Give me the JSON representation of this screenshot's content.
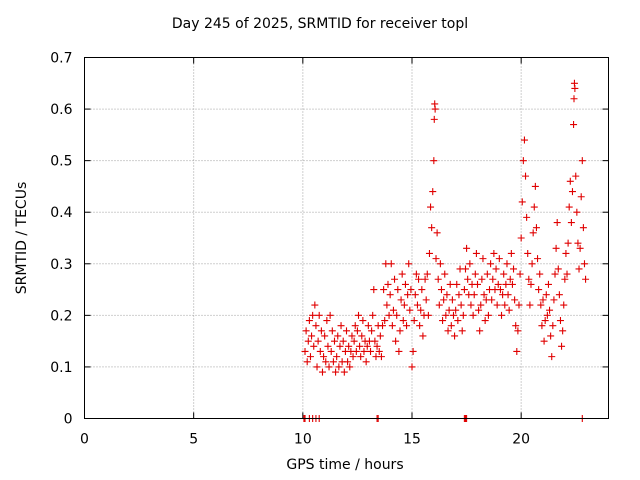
{
  "chart_data": {
    "type": "scatter",
    "title": "Day 245 of 2025, SRMTID for receiver topl",
    "xlabel": "GPS time / hours",
    "ylabel": "SRMTID / TECUs",
    "xlim": [
      0,
      24
    ],
    "ylim": [
      0,
      0.7
    ],
    "xticks": [
      0,
      5,
      10,
      15,
      20
    ],
    "yticks": [
      0,
      0.1,
      0.2,
      0.3,
      0.4,
      0.5,
      0.6,
      0.7
    ],
    "ytick_labels": [
      "0",
      "0.1",
      "0.2",
      "0.3",
      "0.4",
      "0.5",
      "0.6",
      "0.7"
    ],
    "grid": true,
    "marker": "+",
    "color": "#e00000",
    "series": [
      {
        "name": "SRMTID",
        "points": [
          [
            10.05,
            0.0
          ],
          [
            10.1,
            0.0
          ],
          [
            10.3,
            0.0
          ],
          [
            10.45,
            0.0
          ],
          [
            10.6,
            0.0
          ],
          [
            10.75,
            0.0
          ],
          [
            13.4,
            0.0
          ],
          [
            13.45,
            0.0
          ],
          [
            17.4,
            0.0
          ],
          [
            17.45,
            0.0
          ],
          [
            17.5,
            0.0
          ],
          [
            22.8,
            0.0
          ],
          [
            10.1,
            0.13
          ],
          [
            10.15,
            0.17
          ],
          [
            10.2,
            0.11
          ],
          [
            10.25,
            0.15
          ],
          [
            10.3,
            0.19
          ],
          [
            10.35,
            0.12
          ],
          [
            10.4,
            0.16
          ],
          [
            10.45,
            0.2
          ],
          [
            10.5,
            0.14
          ],
          [
            10.55,
            0.22
          ],
          [
            10.6,
            0.18
          ],
          [
            10.65,
            0.1
          ],
          [
            10.7,
            0.15
          ],
          [
            10.75,
            0.2
          ],
          [
            10.8,
            0.13
          ],
          [
            10.85,
            0.17
          ],
          [
            10.9,
            0.09
          ],
          [
            10.95,
            0.12
          ],
          [
            11.0,
            0.16
          ],
          [
            11.05,
            0.11
          ],
          [
            11.1,
            0.19
          ],
          [
            11.15,
            0.14
          ],
          [
            11.2,
            0.1
          ],
          [
            11.25,
            0.2
          ],
          [
            11.3,
            0.13
          ],
          [
            11.35,
            0.17
          ],
          [
            11.4,
            0.11
          ],
          [
            11.45,
            0.15
          ],
          [
            11.5,
            0.09
          ],
          [
            11.55,
            0.12
          ],
          [
            11.6,
            0.16
          ],
          [
            11.65,
            0.1
          ],
          [
            11.7,
            0.14
          ],
          [
            11.75,
            0.18
          ],
          [
            11.8,
            0.11
          ],
          [
            11.85,
            0.15
          ],
          [
            11.9,
            0.09
          ],
          [
            11.95,
            0.13
          ],
          [
            12.0,
            0.17
          ],
          [
            12.05,
            0.11
          ],
          [
            12.1,
            0.14
          ],
          [
            12.15,
            0.1
          ],
          [
            12.2,
            0.13
          ],
          [
            12.25,
            0.16
          ],
          [
            12.3,
            0.12
          ],
          [
            12.35,
            0.15
          ],
          [
            12.4,
            0.18
          ],
          [
            12.45,
            0.13
          ],
          [
            12.5,
            0.17
          ],
          [
            12.55,
            0.2
          ],
          [
            12.6,
            0.14
          ],
          [
            12.65,
            0.12
          ],
          [
            12.7,
            0.16
          ],
          [
            12.75,
            0.19
          ],
          [
            12.8,
            0.13
          ],
          [
            12.85,
            0.15
          ],
          [
            12.9,
            0.11
          ],
          [
            12.95,
            0.14
          ],
          [
            13.0,
            0.18
          ],
          [
            13.05,
            0.15
          ],
          [
            13.1,
            0.13
          ],
          [
            13.15,
            0.17
          ],
          [
            13.2,
            0.2
          ],
          [
            13.25,
            0.25
          ],
          [
            13.3,
            0.15
          ],
          [
            13.35,
            0.12
          ],
          [
            13.4,
            0.14
          ],
          [
            13.45,
            0.18
          ],
          [
            13.5,
            0.13
          ],
          [
            13.55,
            0.16
          ],
          [
            13.6,
            0.12
          ],
          [
            13.65,
            0.18
          ],
          [
            13.7,
            0.25
          ],
          [
            13.75,
            0.19
          ],
          [
            13.8,
            0.3
          ],
          [
            13.85,
            0.22
          ],
          [
            13.9,
            0.26
          ],
          [
            13.95,
            0.2
          ],
          [
            14.0,
            0.24
          ],
          [
            14.05,
            0.3
          ],
          [
            14.1,
            0.18
          ],
          [
            14.15,
            0.21
          ],
          [
            14.2,
            0.27
          ],
          [
            14.25,
            0.15
          ],
          [
            14.3,
            0.2
          ],
          [
            14.35,
            0.25
          ],
          [
            14.4,
            0.13
          ],
          [
            14.45,
            0.17
          ],
          [
            14.5,
            0.23
          ],
          [
            14.55,
            0.28
          ],
          [
            14.6,
            0.19
          ],
          [
            14.65,
            0.22
          ],
          [
            14.7,
            0.26
          ],
          [
            14.75,
            0.18
          ],
          [
            14.8,
            0.24
          ],
          [
            14.85,
            0.3
          ],
          [
            14.9,
            0.21
          ],
          [
            14.95,
            0.25
          ],
          [
            15.0,
            0.1
          ],
          [
            15.05,
            0.13
          ],
          [
            15.1,
            0.19
          ],
          [
            15.15,
            0.24
          ],
          [
            15.2,
            0.28
          ],
          [
            15.25,
            0.22
          ],
          [
            15.3,
            0.27
          ],
          [
            15.35,
            0.18
          ],
          [
            15.4,
            0.21
          ],
          [
            15.45,
            0.25
          ],
          [
            15.5,
            0.16
          ],
          [
            15.55,
            0.2
          ],
          [
            15.6,
            0.27
          ],
          [
            15.65,
            0.23
          ],
          [
            15.7,
            0.28
          ],
          [
            15.75,
            0.2
          ],
          [
            15.8,
            0.32
          ],
          [
            15.85,
            0.41
          ],
          [
            15.9,
            0.37
          ],
          [
            15.95,
            0.44
          ],
          [
            16.0,
            0.5
          ],
          [
            16.02,
            0.58
          ],
          [
            16.04,
            0.61
          ],
          [
            16.06,
            0.6
          ],
          [
            16.1,
            0.31
          ],
          [
            16.15,
            0.36
          ],
          [
            16.2,
            0.27
          ],
          [
            16.25,
            0.22
          ],
          [
            16.3,
            0.3
          ],
          [
            16.35,
            0.25
          ],
          [
            16.4,
            0.19
          ],
          [
            16.45,
            0.23
          ],
          [
            16.5,
            0.28
          ],
          [
            16.55,
            0.2
          ],
          [
            16.6,
            0.24
          ],
          [
            16.65,
            0.17
          ],
          [
            16.7,
            0.21
          ],
          [
            16.75,
            0.26
          ],
          [
            16.8,
            0.18
          ],
          [
            16.85,
            0.23
          ],
          [
            16.9,
            0.2
          ],
          [
            16.95,
            0.16
          ],
          [
            17.0,
            0.21
          ],
          [
            17.05,
            0.26
          ],
          [
            17.1,
            0.19
          ],
          [
            17.15,
            0.24
          ],
          [
            17.2,
            0.29
          ],
          [
            17.25,
            0.22
          ],
          [
            17.3,
            0.17
          ],
          [
            17.35,
            0.2
          ],
          [
            17.4,
            0.25
          ],
          [
            17.45,
            0.29
          ],
          [
            17.5,
            0.33
          ],
          [
            17.55,
            0.27
          ],
          [
            17.6,
            0.24
          ],
          [
            17.65,
            0.3
          ],
          [
            17.7,
            0.22
          ],
          [
            17.75,
            0.26
          ],
          [
            17.8,
            0.2
          ],
          [
            17.85,
            0.24
          ],
          [
            17.9,
            0.28
          ],
          [
            17.95,
            0.32
          ],
          [
            18.0,
            0.26
          ],
          [
            18.05,
            0.21
          ],
          [
            18.1,
            0.17
          ],
          [
            18.15,
            0.22
          ],
          [
            18.2,
            0.27
          ],
          [
            18.25,
            0.31
          ],
          [
            18.3,
            0.24
          ],
          [
            18.35,
            0.19
          ],
          [
            18.4,
            0.23
          ],
          [
            18.45,
            0.28
          ],
          [
            18.5,
            0.2
          ],
          [
            18.55,
            0.25
          ],
          [
            18.6,
            0.3
          ],
          [
            18.65,
            0.23
          ],
          [
            18.7,
            0.27
          ],
          [
            18.75,
            0.32
          ],
          [
            18.8,
            0.25
          ],
          [
            18.85,
            0.29
          ],
          [
            18.9,
            0.22
          ],
          [
            18.95,
            0.26
          ],
          [
            19.0,
            0.31
          ],
          [
            19.05,
            0.25
          ],
          [
            19.1,
            0.2
          ],
          [
            19.15,
            0.24
          ],
          [
            19.2,
            0.28
          ],
          [
            19.25,
            0.22
          ],
          [
            19.3,
            0.26
          ],
          [
            19.35,
            0.3
          ],
          [
            19.4,
            0.24
          ],
          [
            19.45,
            0.21
          ],
          [
            19.5,
            0.27
          ],
          [
            19.55,
            0.32
          ],
          [
            19.6,
            0.26
          ],
          [
            19.65,
            0.29
          ],
          [
            19.7,
            0.23
          ],
          [
            19.75,
            0.18
          ],
          [
            19.8,
            0.13
          ],
          [
            19.85,
            0.17
          ],
          [
            19.9,
            0.22
          ],
          [
            19.95,
            0.28
          ],
          [
            20.0,
            0.35
          ],
          [
            20.05,
            0.42
          ],
          [
            20.1,
            0.5
          ],
          [
            20.15,
            0.54
          ],
          [
            20.2,
            0.47
          ],
          [
            20.25,
            0.39
          ],
          [
            20.3,
            0.32
          ],
          [
            20.35,
            0.27
          ],
          [
            20.4,
            0.22
          ],
          [
            20.45,
            0.26
          ],
          [
            20.5,
            0.3
          ],
          [
            20.55,
            0.36
          ],
          [
            20.6,
            0.41
          ],
          [
            20.65,
            0.45
          ],
          [
            20.7,
            0.37
          ],
          [
            20.75,
            0.31
          ],
          [
            20.8,
            0.25
          ],
          [
            20.85,
            0.28
          ],
          [
            20.9,
            0.22
          ],
          [
            20.95,
            0.18
          ],
          [
            21.0,
            0.23
          ],
          [
            21.05,
            0.15
          ],
          [
            21.1,
            0.19
          ],
          [
            21.15,
            0.24
          ],
          [
            21.2,
            0.2
          ],
          [
            21.25,
            0.26
          ],
          [
            21.3,
            0.21
          ],
          [
            21.35,
            0.16
          ],
          [
            21.4,
            0.12
          ],
          [
            21.45,
            0.18
          ],
          [
            21.5,
            0.23
          ],
          [
            21.55,
            0.28
          ],
          [
            21.6,
            0.33
          ],
          [
            21.65,
            0.38
          ],
          [
            21.7,
            0.29
          ],
          [
            21.75,
            0.24
          ],
          [
            21.8,
            0.19
          ],
          [
            21.85,
            0.14
          ],
          [
            21.9,
            0.17
          ],
          [
            21.95,
            0.22
          ],
          [
            22.0,
            0.27
          ],
          [
            22.05,
            0.32
          ],
          [
            22.1,
            0.28
          ],
          [
            22.15,
            0.34
          ],
          [
            22.2,
            0.41
          ],
          [
            22.25,
            0.46
          ],
          [
            22.3,
            0.38
          ],
          [
            22.35,
            0.44
          ],
          [
            22.4,
            0.57
          ],
          [
            22.42,
            0.62
          ],
          [
            22.44,
            0.65
          ],
          [
            22.46,
            0.64
          ],
          [
            22.5,
            0.47
          ],
          [
            22.55,
            0.4
          ],
          [
            22.6,
            0.34
          ],
          [
            22.65,
            0.29
          ],
          [
            22.7,
            0.33
          ],
          [
            22.75,
            0.43
          ],
          [
            22.8,
            0.5
          ],
          [
            22.85,
            0.37
          ],
          [
            22.9,
            0.3
          ],
          [
            22.95,
            0.27
          ]
        ]
      }
    ]
  }
}
